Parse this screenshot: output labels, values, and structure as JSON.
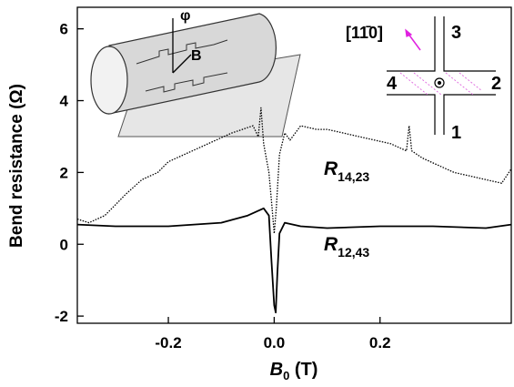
{
  "chart_data": {
    "type": "line",
    "x_label": {
      "text": "B",
      "subscript": "0",
      "unit": " (T)"
    },
    "y_label": "Bend resistance (Ω)",
    "xlim": [
      -0.372,
      0.448
    ],
    "ylim": [
      -2.2,
      6.6
    ],
    "xticks": [
      -0.2,
      {
        "value": 0,
        "label": "0.0"
      },
      0.2
    ],
    "yticks": [
      -2,
      0,
      2,
      4,
      6
    ],
    "series": [
      {
        "style": "dotted",
        "color": "#000000",
        "x": [
          -0.372,
          -0.35,
          -0.32,
          -0.3,
          -0.28,
          -0.25,
          -0.22,
          -0.2,
          -0.17,
          -0.14,
          -0.11,
          -0.08,
          -0.06,
          -0.04,
          -0.03,
          -0.025,
          -0.02,
          -0.01,
          -0.004,
          0.0,
          0.004,
          0.01,
          0.02,
          0.03,
          0.05,
          0.08,
          0.1,
          0.13,
          0.16,
          0.19,
          0.22,
          0.25,
          0.255,
          0.26,
          0.28,
          0.31,
          0.34,
          0.37,
          0.4,
          0.43,
          0.448
        ],
        "values": [
          0.7,
          0.6,
          0.8,
          1.1,
          1.4,
          1.8,
          2.0,
          2.3,
          2.5,
          2.7,
          2.9,
          3.1,
          3.2,
          3.3,
          3.0,
          3.8,
          2.8,
          2.0,
          1.0,
          0.3,
          1.0,
          2.5,
          3.1,
          2.9,
          3.3,
          3.2,
          3.2,
          3.1,
          3.0,
          2.9,
          2.8,
          2.6,
          3.3,
          2.6,
          2.4,
          2.2,
          2.0,
          1.9,
          1.8,
          1.7,
          2.1
        ]
      },
      {
        "style": "solid",
        "color": "#000000",
        "x": [
          -0.372,
          -0.3,
          -0.2,
          -0.1,
          -0.05,
          -0.02,
          -0.01,
          -0.005,
          0.0,
          0.003,
          0.006,
          0.01,
          0.02,
          0.05,
          0.1,
          0.2,
          0.3,
          0.4,
          0.448
        ],
        "values": [
          0.55,
          0.5,
          0.5,
          0.6,
          0.8,
          1.0,
          0.8,
          -0.5,
          -1.7,
          -1.9,
          -0.8,
          0.3,
          0.6,
          0.5,
          0.45,
          0.5,
          0.5,
          0.45,
          0.55
        ]
      }
    ],
    "annotations": [
      {
        "text": "R",
        "subscript": "14,23"
      },
      {
        "text": "R",
        "subscript": "12,43"
      }
    ],
    "inset_labels": {
      "angle": "φ",
      "field": "B",
      "direction": "[11̄0]",
      "contacts": [
        "3",
        "4",
        "2",
        "1"
      ]
    }
  }
}
